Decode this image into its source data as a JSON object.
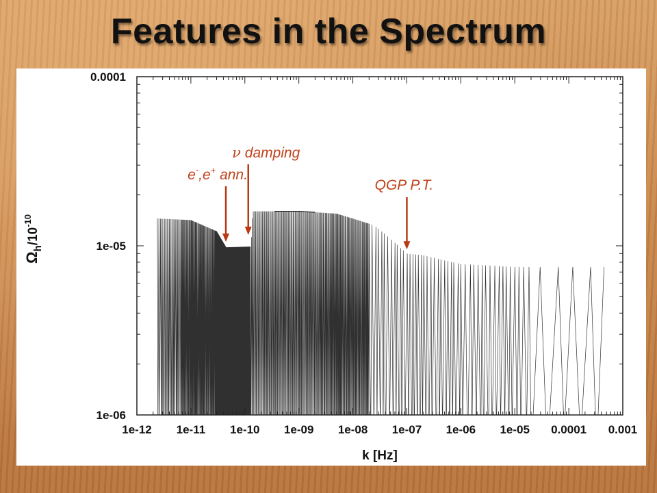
{
  "slide": {
    "title": "Features in the Spectrum"
  },
  "chart_data": {
    "type": "line",
    "title": "",
    "xlabel": "k [Hz]",
    "ylabel": "Ωh/10-10",
    "ylabel_parts": {
      "main": "Ω",
      "sub": "h",
      "rest": "/10",
      "sup": "-10"
    },
    "x_scale": "log",
    "y_scale": "log",
    "xlim": [
      1e-12,
      0.001
    ],
    "ylim": [
      1e-06,
      0.0001
    ],
    "x_tick_labels": [
      "1e-12",
      "1e-11",
      "1e-10",
      "1e-09",
      "1e-08",
      "1e-07",
      "1e-06",
      "1e-05",
      "0.0001",
      "0.001"
    ],
    "y_tick_labels": [
      "1e-06",
      "1e-05",
      "0.0001"
    ],
    "grid": false,
    "series": [
      {
        "envelope_x": [
          2.2e-12,
          2.4e-12,
          1e-11,
          3e-11,
          4.5e-11,
          1.3e-10,
          1.4e-10,
          3e-10,
          1e-09,
          5e-09,
          1e-08,
          2.5e-08,
          5e-08,
          1e-07,
          2e-07,
          5e-07,
          1e-06,
          5e-06,
          1e-05,
          5e-05,
          0.0001,
          0.0005
        ],
        "envelope_y": [
          5e-06,
          1.45e-05,
          1.42e-05,
          1.22e-05,
          9.8e-06,
          9.9e-06,
          1.6e-05,
          1.6e-05,
          1.6e-05,
          1.55e-05,
          1.45e-05,
          1.32e-05,
          1.1e-05,
          9e-06,
          8.8e-06,
          8.2e-06,
          7.8e-06,
          7.6e-06,
          7.5e-06,
          7.5e-06,
          7.5e-06,
          7.5e-06
        ]
      }
    ],
    "annotations": [
      {
        "text_main": "e",
        "sup1": "-",
        "text_mid": ",e",
        "sup2": "+",
        "text_end": " ann.",
        "x": 5e-11,
        "y": 9.8e-06
      },
      {
        "text_greek": "ν",
        "text": " damping",
        "x": 1.3e-10,
        "y": 1e-05
      },
      {
        "text": "QGP P.T.",
        "x": 1e-07,
        "y": 9e-06
      }
    ],
    "colors": {
      "line": "#1a1a1a",
      "annotation": "#c0421a",
      "arrow": "#b83a14"
    }
  }
}
